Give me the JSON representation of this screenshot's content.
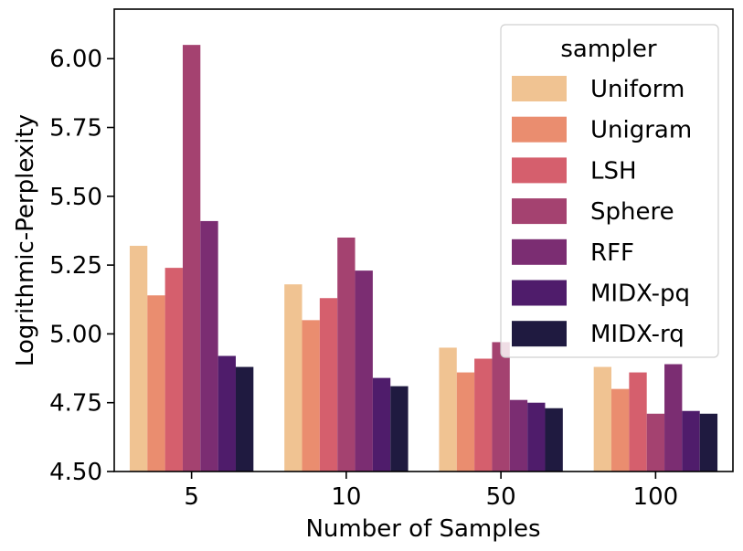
{
  "chart_data": {
    "type": "bar",
    "title": "",
    "xlabel": "Number of Samples",
    "ylabel": "Logrithmic-Perplexity",
    "categories": [
      "5",
      "10",
      "50",
      "100"
    ],
    "ylim": [
      4.5,
      6.18
    ],
    "yticks": [
      "4.50",
      "4.75",
      "5.00",
      "5.25",
      "5.50",
      "5.75",
      "6.00"
    ],
    "grid": false,
    "legend": {
      "title": "sampler",
      "position": "top-right"
    },
    "series": [
      {
        "name": "Uniform",
        "color": "#f0c392",
        "values": [
          5.32,
          5.18,
          4.95,
          4.88
        ]
      },
      {
        "name": "Unigram",
        "color": "#ea8d6f",
        "values": [
          5.14,
          5.05,
          4.86,
          4.8
        ]
      },
      {
        "name": "LSH",
        "color": "#d55f6d",
        "values": [
          5.24,
          5.13,
          4.91,
          4.86
        ]
      },
      {
        "name": "Sphere",
        "color": "#a44270",
        "values": [
          6.05,
          5.35,
          4.97,
          4.71
        ]
      },
      {
        "name": "RFF",
        "color": "#7b2d72",
        "values": [
          5.41,
          5.23,
          4.76,
          4.89
        ]
      },
      {
        "name": "MIDX-pq",
        "color": "#4f1c6b",
        "values": [
          4.92,
          4.84,
          4.75,
          4.72
        ]
      },
      {
        "name": "MIDX-rq",
        "color": "#1f1a40",
        "values": [
          4.88,
          4.81,
          4.73,
          4.71
        ]
      }
    ]
  }
}
